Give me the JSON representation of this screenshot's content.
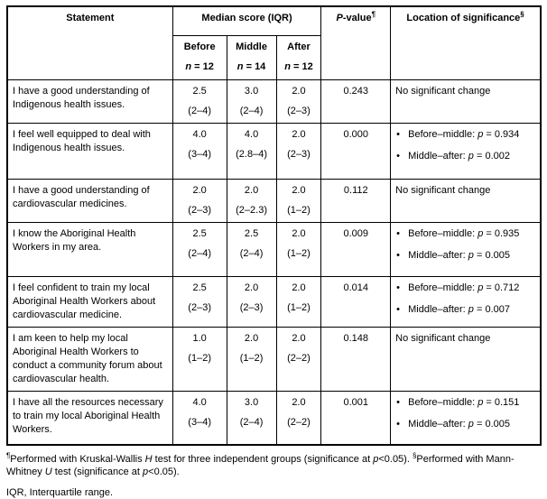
{
  "table": {
    "header": {
      "statement": "Statement",
      "median": "Median score (IQR)",
      "pvalue_rich": [
        {
          "t": "P",
          "i": true
        },
        {
          "t": "-value"
        },
        {
          "t": "¶",
          "sup": true
        }
      ],
      "location_rich": [
        {
          "t": "Location of significance"
        },
        {
          "t": "§",
          "sup": true
        }
      ],
      "subcols": [
        {
          "label": "Before",
          "n_rich": [
            {
              "t": "n",
              "i": true
            },
            {
              "t": " = 12"
            }
          ]
        },
        {
          "label": "Middle",
          "n_rich": [
            {
              "t": "n",
              "i": true
            },
            {
              "t": " = 14"
            }
          ]
        },
        {
          "label": "After",
          "n_rich": [
            {
              "t": "n",
              "i": true
            },
            {
              "t": " = 12"
            }
          ]
        }
      ]
    },
    "rows": [
      {
        "statement": "I have a good understanding of Indigenous health issues.",
        "before": {
          "median": "2.5",
          "iqr": "(2–4)"
        },
        "middle": {
          "median": "3.0",
          "iqr": "(2–4)"
        },
        "after": {
          "median": "2.0",
          "iqr": "(2–3)"
        },
        "pvalue": "0.243",
        "location_text": "No significant change"
      },
      {
        "statement": "I feel well equipped to deal with Indigenous health issues.",
        "before": {
          "median": "4.0",
          "iqr": "(3–4)"
        },
        "middle": {
          "median": "4.0",
          "iqr": "(2.8–4)"
        },
        "after": {
          "median": "2.0",
          "iqr": "(2–3)"
        },
        "pvalue": "0.000",
        "location_bullets": [
          [
            {
              "t": "Before–middle: "
            },
            {
              "t": "p",
              "i": true
            },
            {
              "t": " = 0.934"
            }
          ],
          [
            {
              "t": "Middle–after: "
            },
            {
              "t": "p",
              "i": true
            },
            {
              "t": " = 0.002"
            }
          ]
        ]
      },
      {
        "statement": "I have a good understanding of cardiovascular medicines.",
        "before": {
          "median": "2.0",
          "iqr": "(2–3)"
        },
        "middle": {
          "median": "2.0",
          "iqr": "(2–2.3)"
        },
        "after": {
          "median": "2.0",
          "iqr": "(1–2)"
        },
        "pvalue": "0.112",
        "location_text": "No significant change"
      },
      {
        "statement": "I know the Aboriginal Health Workers in my area.",
        "before": {
          "median": "2.5",
          "iqr": "(2–4)"
        },
        "middle": {
          "median": "2.5",
          "iqr": "(2–4)"
        },
        "after": {
          "median": "2.0",
          "iqr": "(1–2)"
        },
        "pvalue": "0.009",
        "location_bullets": [
          [
            {
              "t": "Before–middle: "
            },
            {
              "t": "p",
              "i": true
            },
            {
              "t": " = 0.935"
            }
          ],
          [
            {
              "t": "Middle–after: "
            },
            {
              "t": "p",
              "i": true
            },
            {
              "t": " = 0.005"
            }
          ]
        ]
      },
      {
        "statement": "I feel confident to train my local Aboriginal Health Workers about cardiovascular medicine.",
        "before": {
          "median": "2.5",
          "iqr": "(2–3)"
        },
        "middle": {
          "median": "2.0",
          "iqr": "(2–3)"
        },
        "after": {
          "median": "2.0",
          "iqr": "(1–2)"
        },
        "pvalue": "0.014",
        "location_bullets": [
          [
            {
              "t": "Before–middle: "
            },
            {
              "t": "p",
              "i": true
            },
            {
              "t": " = 0.712"
            }
          ],
          [
            {
              "t": "Middle–after: "
            },
            {
              "t": "p",
              "i": true
            },
            {
              "t": " = 0.007"
            }
          ]
        ]
      },
      {
        "statement": "I am keen to help my local Aboriginal Health Workers to conduct a community forum about cardiovascular health.",
        "before": {
          "median": "1.0",
          "iqr": "(1–2)"
        },
        "middle": {
          "median": "2.0",
          "iqr": "(1–2)"
        },
        "after": {
          "median": "2.0",
          "iqr": "(2–2)"
        },
        "pvalue": "0.148",
        "location_text": "No significant change"
      },
      {
        "statement": "I have all the resources necessary to train my local Aboriginal Health Workers.",
        "before": {
          "median": "4.0",
          "iqr": "(3–4)"
        },
        "middle": {
          "median": "3.0",
          "iqr": "(2–4)"
        },
        "after": {
          "median": "2.0",
          "iqr": "(2–2)"
        },
        "pvalue": "0.001",
        "location_bullets": [
          [
            {
              "t": "Before–middle: "
            },
            {
              "t": "p",
              "i": true
            },
            {
              "t": " = 0.151"
            }
          ],
          [
            {
              "t": "Middle–after: "
            },
            {
              "t": "p",
              "i": true
            },
            {
              "t": " = 0.005"
            }
          ]
        ]
      }
    ]
  },
  "footnotes": {
    "tests_rich": [
      {
        "t": "¶",
        "sup": true
      },
      {
        "t": "Performed with Kruskal-Wallis "
      },
      {
        "t": "H",
        "i": true
      },
      {
        "t": " test for three independent groups (significance at "
      },
      {
        "t": "p",
        "i": true
      },
      {
        "t": "<0.05). "
      },
      {
        "t": "§",
        "sup": true
      },
      {
        "t": "Performed with Mann-Whitney "
      },
      {
        "t": "U",
        "i": true
      },
      {
        "t": " test (significance at "
      },
      {
        "t": "p",
        "i": true
      },
      {
        "t": "<0.05)."
      }
    ],
    "iqr": "IQR, Interquartile range."
  },
  "marker": {
    "bullet": "•"
  }
}
